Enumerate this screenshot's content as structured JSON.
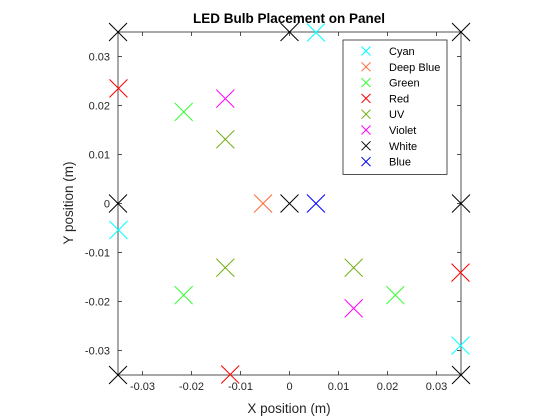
{
  "chart_data": {
    "type": "scatter",
    "title": "LED Bulb Placement on Panel",
    "xlabel": "X position (m)",
    "ylabel": "Y position (m)",
    "xlim": [
      -0.035,
      0.035
    ],
    "ylim": [
      -0.035,
      0.035
    ],
    "xticks": [
      -0.03,
      -0.02,
      -0.01,
      0,
      0.01,
      0.02,
      0.03
    ],
    "xtick_labels": [
      "-0.03",
      "-0.02",
      "-0.01",
      "0",
      "0.01",
      "0.02",
      "0.03"
    ],
    "yticks": [
      -0.03,
      -0.02,
      -0.01,
      0,
      0.01,
      0.02,
      0.03
    ],
    "ytick_labels": [
      "-0.03",
      "-0.02",
      "-0.01",
      "0",
      "0.01",
      "0.02",
      "0.03"
    ],
    "grid": false,
    "legend_position": "top-right",
    "marker": "x",
    "series": [
      {
        "name": "Cyan",
        "color": "#00ffff",
        "points": [
          [
            0.0054,
            0.0349
          ],
          [
            -0.0349,
            -0.0054
          ],
          [
            0.0349,
            -0.029
          ]
        ]
      },
      {
        "name": "Deep Blue",
        "color": "#ff6633",
        "points": [
          [
            -0.0054,
            0.0
          ]
        ]
      },
      {
        "name": "Green",
        "color": "#33ff33",
        "points": [
          [
            -0.0216,
            0.0187
          ],
          [
            -0.0216,
            -0.0187
          ],
          [
            0.0216,
            -0.0187
          ]
        ]
      },
      {
        "name": "Red",
        "color": "#ff0000",
        "points": [
          [
            -0.0349,
            0.0235
          ],
          [
            0.0349,
            -0.0141
          ],
          [
            -0.0121,
            -0.0349
          ]
        ]
      },
      {
        "name": "UV",
        "color": "#66aa00",
        "points": [
          [
            -0.0131,
            0.0131
          ],
          [
            -0.0131,
            -0.0131
          ],
          [
            0.0131,
            -0.0131
          ]
        ]
      },
      {
        "name": "Violet",
        "color": "#ff00ff",
        "points": [
          [
            -0.0131,
            0.0214
          ],
          [
            0.0131,
            -0.0214
          ]
        ]
      },
      {
        "name": "White",
        "color": "#000000",
        "points": [
          [
            -0.035,
            0.035
          ],
          [
            0.0,
            0.035
          ],
          [
            0.035,
            0.035
          ],
          [
            -0.035,
            0.0
          ],
          [
            0.0,
            0.0
          ],
          [
            0.035,
            0.0
          ],
          [
            -0.035,
            -0.035
          ],
          [
            0.035,
            -0.035
          ]
        ]
      },
      {
        "name": "Blue",
        "color": "#0000ff",
        "points": [
          [
            0.0054,
            0.0
          ]
        ]
      }
    ]
  }
}
